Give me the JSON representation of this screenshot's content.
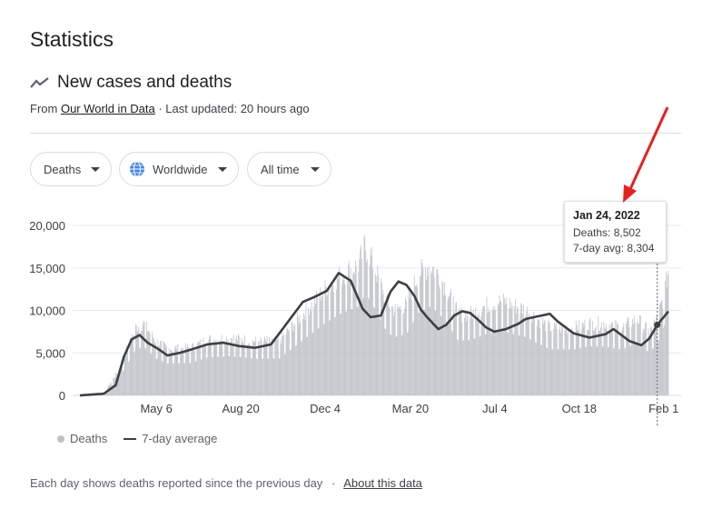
{
  "page": {
    "title": "Statistics"
  },
  "section": {
    "title": "New cases and deaths",
    "icon": "trending-up-icon",
    "source_prefix": "From ",
    "source_link": "Our World in Data",
    "source_suffix": " · Last updated: 20 hours ago"
  },
  "filters": {
    "metric": "Deaths",
    "region": "Worldwide",
    "range": "All time"
  },
  "tooltip": {
    "date": "Jan 24, 2022",
    "deaths": "Deaths: 8,502",
    "avg": "7-day avg: 8,304"
  },
  "legend": {
    "bars": "Deaths",
    "line": "7-day average"
  },
  "footer": {
    "text": "Each day shows deaths reported since the previous day",
    "separator": "·",
    "link": "About this data"
  },
  "colors": {
    "bar": "#bdc1c6",
    "line": "#3c4043",
    "arrow": "#e8201e",
    "grid": "#e8eaed",
    "globe": "#4285f4"
  },
  "chart_data": {
    "type": "bar",
    "ylim": [
      0,
      20000
    ],
    "yticks": [
      "20,000",
      "15,000",
      "10,000",
      "5,000",
      "0"
    ],
    "ytick_values": [
      20000,
      15000,
      10000,
      5000,
      0
    ],
    "xticks": [
      "May 6",
      "Aug 20",
      "Dec 4",
      "Mar 20",
      "Jul 4",
      "Oct 18",
      "Feb 1"
    ],
    "xtick_days": [
      96,
      202,
      308,
      415,
      521,
      627,
      733
    ],
    "x_start": "2020-01-31",
    "days": 740,
    "series": [
      {
        "name": "Deaths",
        "kind": "bars",
        "keyframes_day": [
          0,
          30,
          50,
          70,
          80,
          96,
          110,
          140,
          160,
          190,
          220,
          250,
          270,
          290,
          310,
          330,
          350,
          358,
          365,
          375,
          385,
          395,
          410,
          425,
          440,
          450,
          460,
          475,
          490,
          510,
          530,
          560,
          590,
          620,
          640,
          660,
          680,
          700,
          715,
          725,
          733,
          740
        ],
        "keyframes_val": [
          0,
          200,
          3000,
          7500,
          8000,
          6000,
          5200,
          5300,
          6200,
          6400,
          6000,
          6000,
          8000,
          10000,
          12000,
          13500,
          14500,
          16500,
          15500,
          13000,
          10500,
          9500,
          10000,
          13500,
          14500,
          13500,
          12000,
          9000,
          9000,
          10000,
          10500,
          9500,
          7500,
          7500,
          8000,
          8000,
          7500,
          8500,
          7000,
          8502,
          11000,
          14500
        ]
      },
      {
        "name": "7-day average",
        "kind": "line",
        "keyframes_day": [
          0,
          30,
          45,
          55,
          65,
          75,
          85,
          96,
          110,
          125,
          140,
          160,
          180,
          200,
          220,
          240,
          260,
          280,
          295,
          310,
          325,
          340,
          355,
          365,
          378,
          390,
          400,
          410,
          420,
          428,
          436,
          450,
          460,
          470,
          480,
          490,
          500,
          510,
          520,
          535,
          550,
          560,
          575,
          590,
          600,
          620,
          640,
          660,
          670,
          690,
          705,
          715,
          725,
          733,
          740
        ],
        "keyframes_val": [
          0,
          200,
          1200,
          4500,
          6600,
          7100,
          6200,
          5600,
          4700,
          5000,
          5400,
          6000,
          6200,
          5800,
          5600,
          6000,
          8500,
          11000,
          11600,
          12300,
          14400,
          13500,
          10200,
          9200,
          9400,
          12200,
          13400,
          13000,
          11700,
          10100,
          9200,
          7800,
          8300,
          9400,
          9900,
          9700,
          8900,
          8000,
          7500,
          7800,
          8400,
          9000,
          9300,
          9600,
          8700,
          7300,
          6800,
          7200,
          7800,
          6400,
          5900,
          6700,
          8304,
          9200,
          10000
        ]
      }
    ]
  }
}
